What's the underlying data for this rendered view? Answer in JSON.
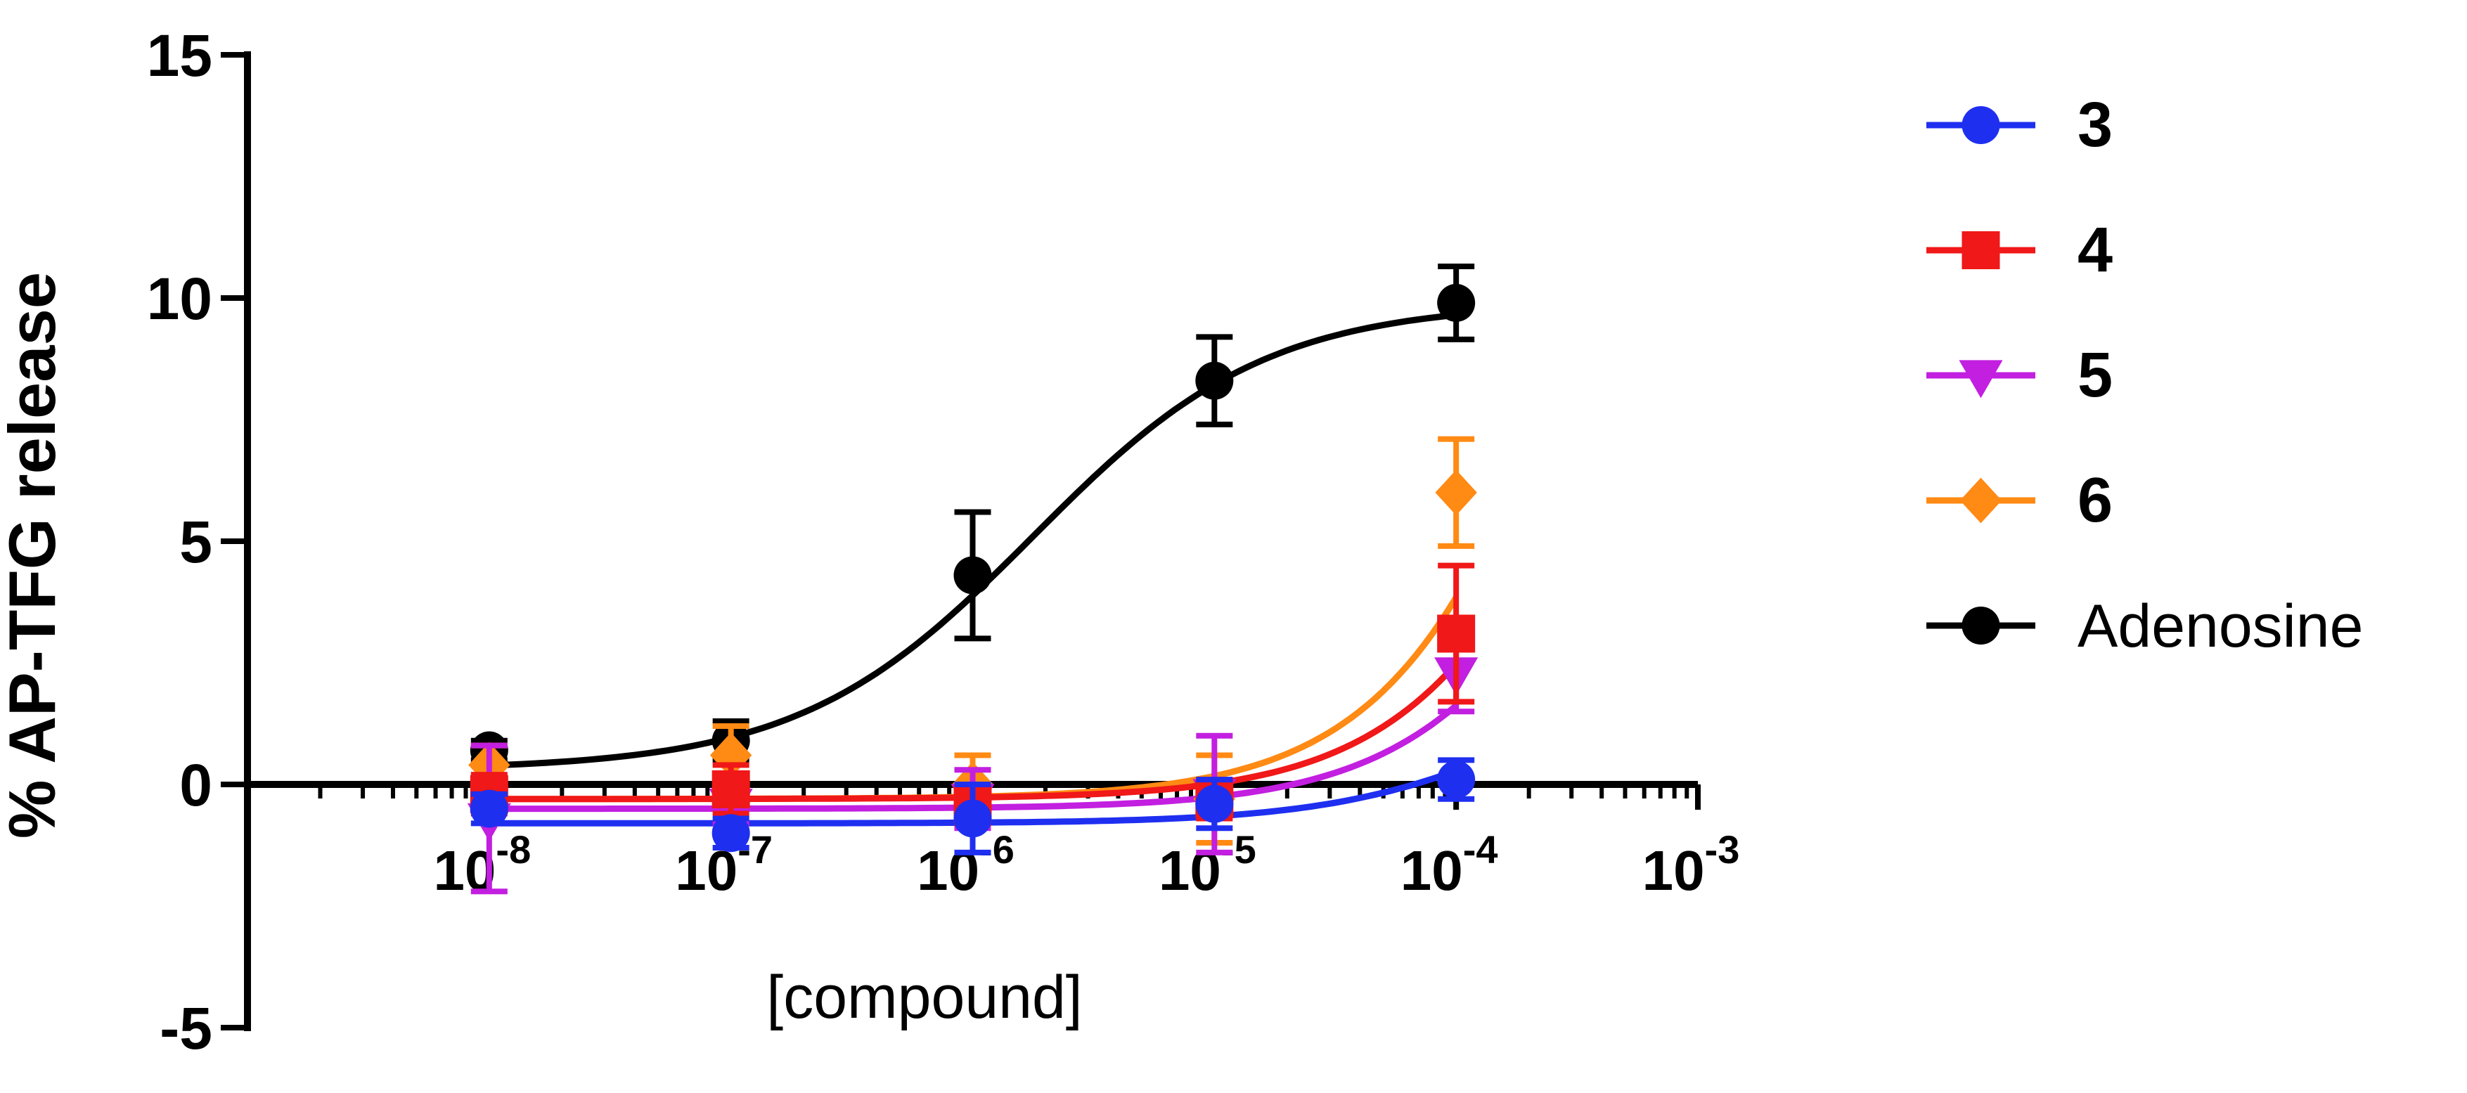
{
  "chart_data": {
    "type": "scatter",
    "xlabel": "[compound]",
    "ylabel": "% AP-TFG release",
    "x_scale": "log",
    "xlim": [
      1e-09,
      0.001
    ],
    "ylim": [
      -5,
      15
    ],
    "y_ticks": [
      -5,
      0,
      5,
      10,
      15
    ],
    "x_tick_bases": [
      "10",
      "10",
      "10",
      "10",
      "10",
      "10"
    ],
    "x_tick_exponents": [
      "-8",
      "-7",
      "-6",
      "-5",
      "-4",
      "-3"
    ],
    "x_tick_values": [
      1e-08,
      1e-07,
      1e-06,
      1e-05,
      0.0001,
      0.001
    ],
    "legend_position": "right",
    "series": [
      {
        "name": "3",
        "color": "#1f2ff0",
        "marker": "circle",
        "x": [
          1e-08,
          1e-07,
          1e-06,
          1e-05,
          0.0001
        ],
        "y": [
          -0.5,
          -1.0,
          -0.7,
          -0.4,
          0.1
        ],
        "err": [
          0.3,
          0.3,
          0.7,
          0.5,
          0.4
        ],
        "fit": {
          "bottom": -0.8,
          "top": 3.0,
          "logec50": -3.6,
          "hill": 1.0
        }
      },
      {
        "name": "4",
        "color": "#f01818",
        "marker": "square",
        "x": [
          1e-08,
          1e-07,
          1e-06,
          1e-05,
          0.0001
        ],
        "y": [
          -0.2,
          -0.1,
          -0.4,
          -0.3,
          3.1
        ],
        "err": [
          0.4,
          0.5,
          0.4,
          0.4,
          1.4
        ],
        "fit": {
          "bottom": -0.3,
          "top": 20.0,
          "logec50": -3.2,
          "hill": 1.0
        }
      },
      {
        "name": "5",
        "color": "#c21fe0",
        "marker": "triangle-down",
        "x": [
          1e-08,
          1e-07,
          1e-06,
          1e-05,
          0.0001
        ],
        "y": [
          -0.7,
          -0.4,
          -0.3,
          -0.2,
          2.3
        ],
        "err": [
          1.5,
          0.4,
          0.6,
          1.2,
          0.8
        ],
        "fit": {
          "bottom": -0.5,
          "top": 15.0,
          "logec50": -3.2,
          "hill": 1.0
        }
      },
      {
        "name": "6",
        "color": "#ff8a14",
        "marker": "diamond",
        "x": [
          1e-08,
          1e-07,
          1e-06,
          1e-05,
          0.0001
        ],
        "y": [
          0.4,
          0.6,
          0.0,
          -0.3,
          6.0
        ],
        "err": [
          0.4,
          0.6,
          0.6,
          0.9,
          1.1
        ],
        "fit": {
          "bottom": -0.3,
          "top": 30.0,
          "logec50": -3.2,
          "hill": 1.0
        }
      },
      {
        "name": "Adenosine",
        "color": "#000000",
        "marker": "circle",
        "x": [
          1e-08,
          1e-07,
          1e-06,
          1e-05,
          0.0001
        ],
        "y": [
          0.7,
          0.9,
          4.3,
          8.3,
          9.9
        ],
        "err": [
          0.2,
          0.4,
          1.3,
          0.9,
          0.75
        ],
        "fit": {
          "bottom": 0.3,
          "top": 9.9,
          "logec50": -5.75,
          "hill": 0.9
        }
      }
    ]
  }
}
